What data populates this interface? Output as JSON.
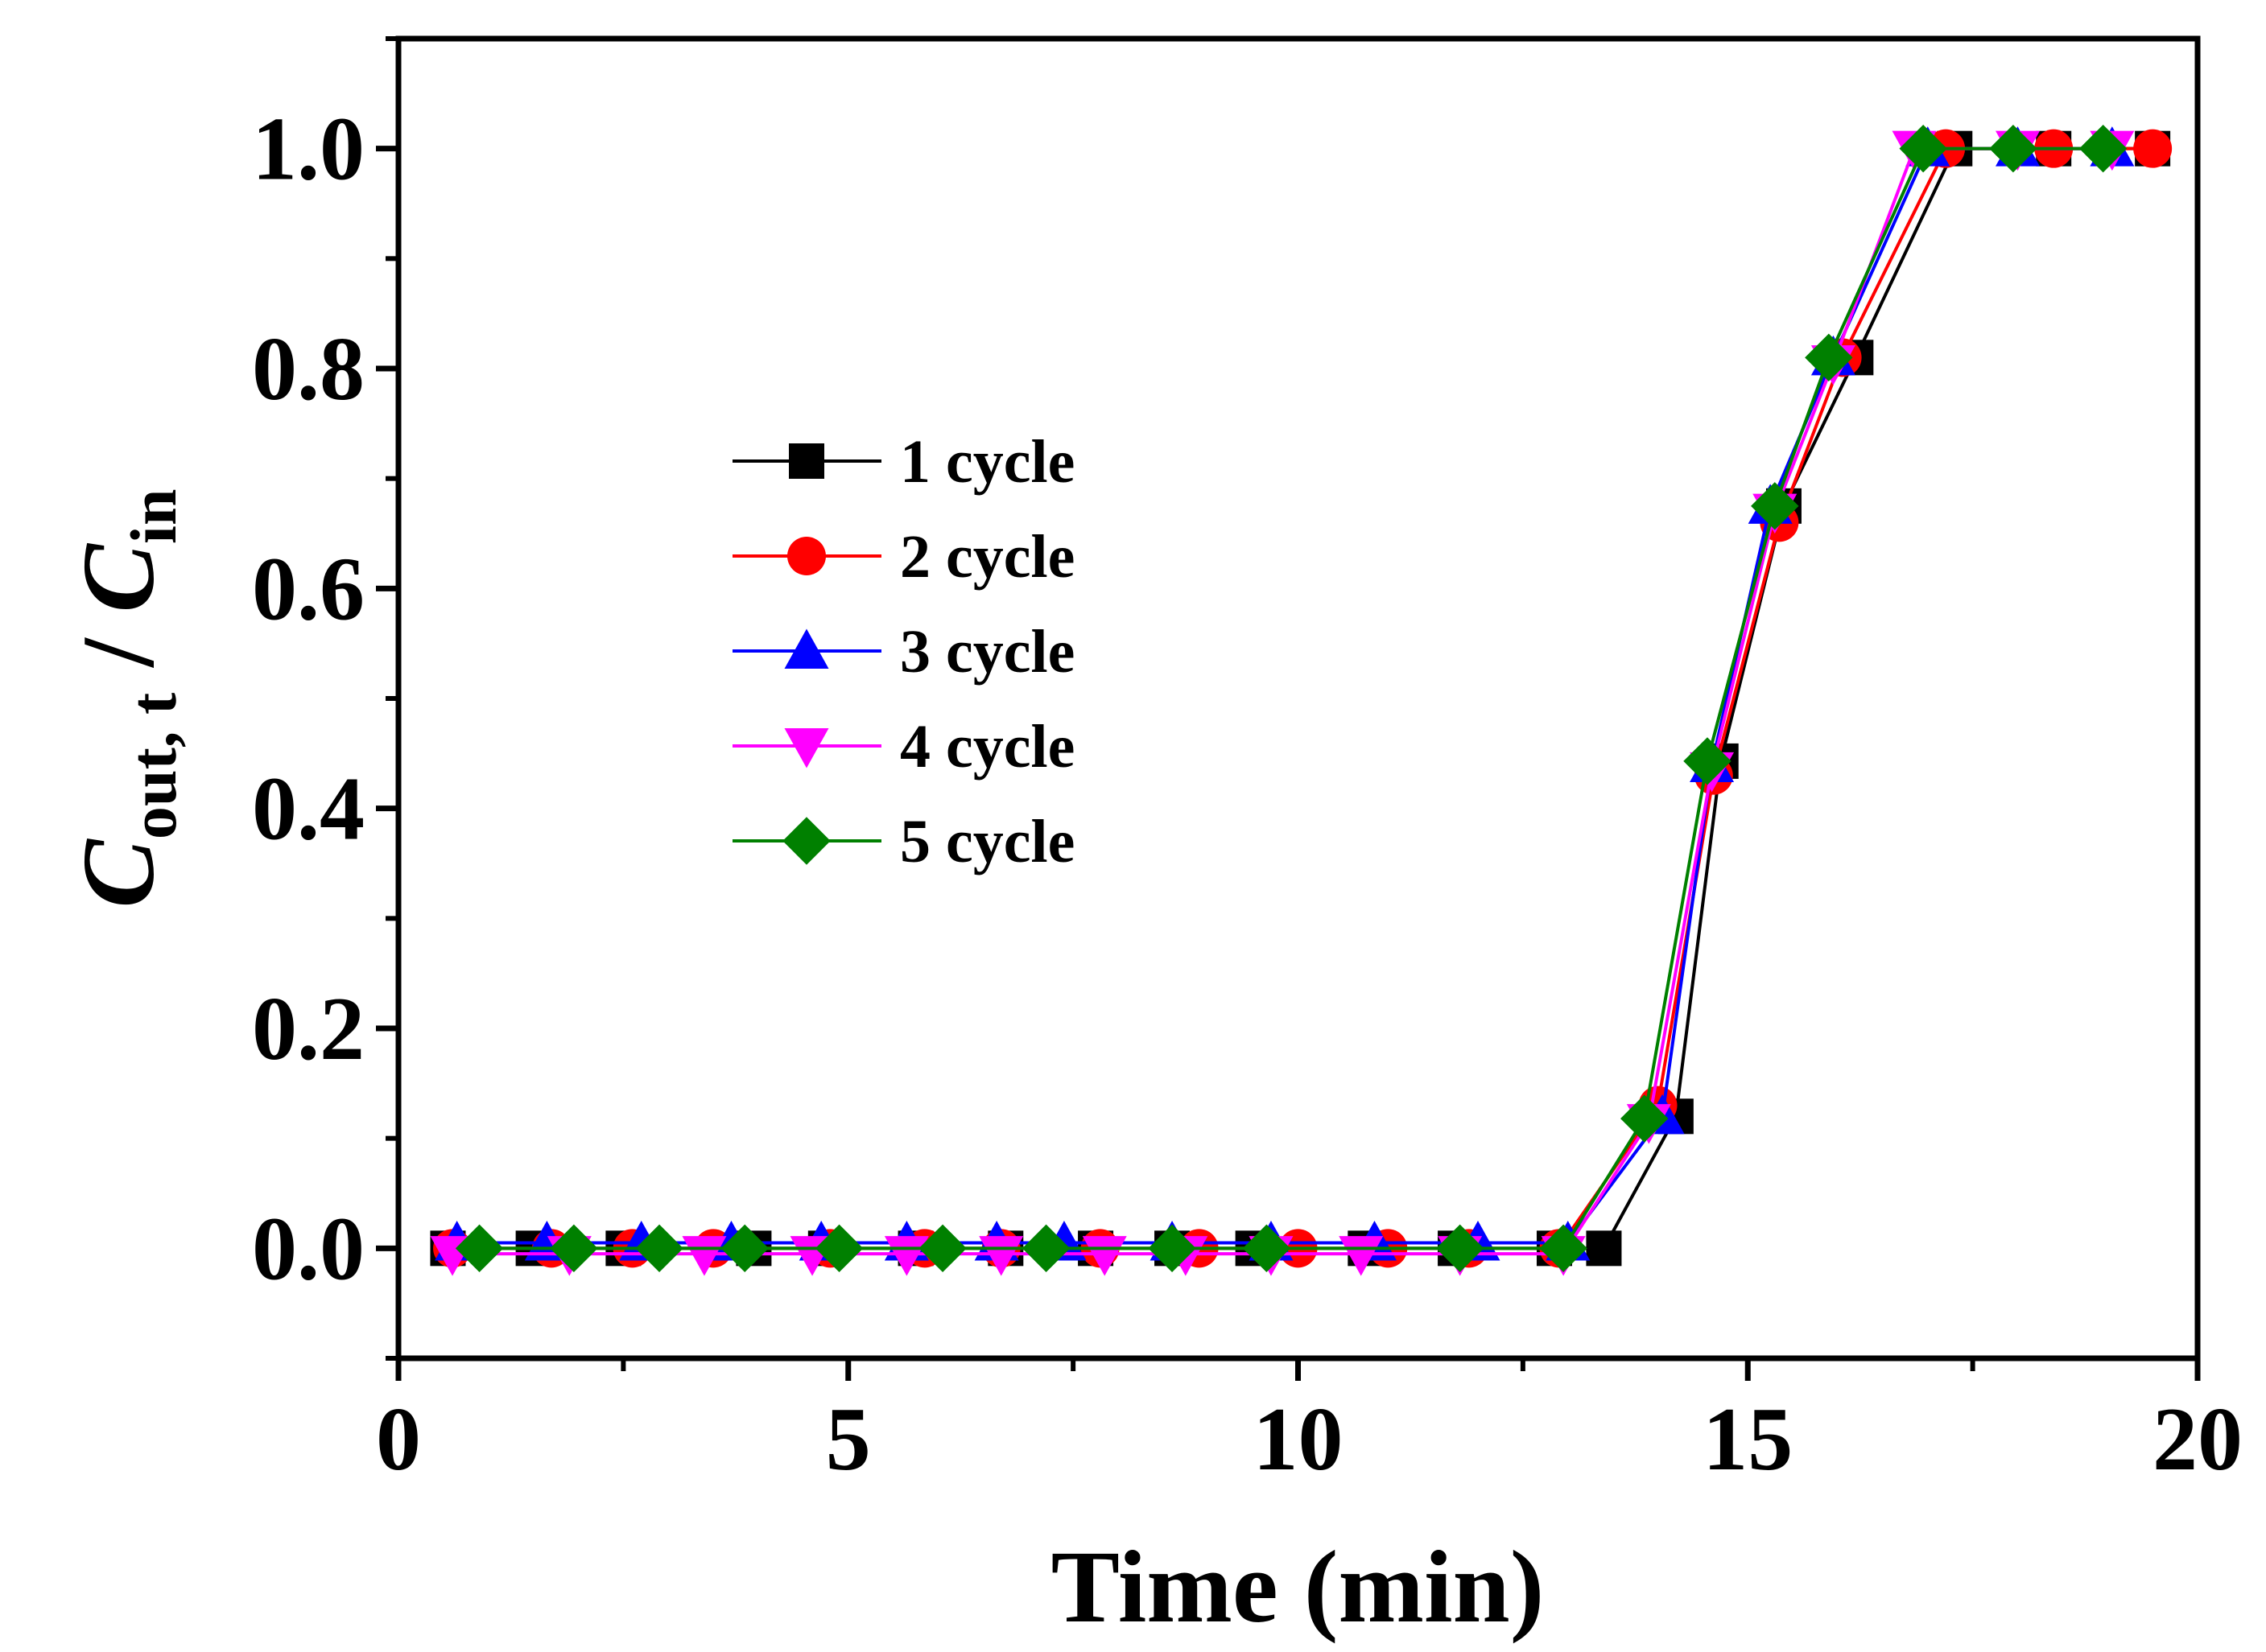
{
  "chart_data": {
    "type": "line",
    "title": "",
    "xlabel": "Time (min)",
    "ylabel": {
      "main1": "C",
      "sub1": "out, t",
      "sep": " / ",
      "main2": "C",
      "sub2": "in"
    },
    "xlim": [
      0,
      20
    ],
    "ylim": [
      -0.1,
      1.1
    ],
    "xticks": [
      0,
      5,
      10,
      15,
      20
    ],
    "xtick_labels": [
      "0",
      "5",
      "10",
      "15",
      "20"
    ],
    "xminor": [
      2.5,
      7.5,
      12.5,
      17.5
    ],
    "yticks": [
      0.0,
      0.2,
      0.4,
      0.6,
      0.8,
      1.0
    ],
    "ytick_labels": [
      "0.0",
      "0.2",
      "0.4",
      "0.6",
      "0.8",
      "1.0"
    ],
    "yminor": [
      -0.1,
      0.1,
      0.3,
      0.5,
      0.7,
      0.9,
      1.1
    ],
    "grid": false,
    "legend_position": "center-left",
    "series": [
      {
        "name": "1 cycle",
        "color": "#000000",
        "marker": "square",
        "points": [
          [
            0.55,
            0
          ],
          [
            1.5,
            0
          ],
          [
            2.5,
            0
          ],
          [
            3.95,
            0
          ],
          [
            4.75,
            0
          ],
          [
            5.75,
            0
          ],
          [
            6.75,
            0
          ],
          [
            7.75,
            0
          ],
          [
            8.6,
            0
          ],
          [
            9.5,
            0
          ],
          [
            10.75,
            0
          ],
          [
            11.75,
            0
          ],
          [
            12.85,
            0
          ],
          [
            13.4,
            0
          ],
          [
            14.2,
            0.12
          ],
          [
            14.7,
            0.443
          ],
          [
            15.4,
            0.675
          ],
          [
            16.2,
            0.81
          ],
          [
            17.3,
            1.0
          ],
          [
            18.4,
            1.0
          ],
          [
            19.5,
            1.0
          ]
        ]
      },
      {
        "name": "2 cycle",
        "color": "#ff0000",
        "marker": "circle",
        "points": [
          [
            0.6,
            0
          ],
          [
            1.7,
            0
          ],
          [
            2.6,
            0
          ],
          [
            3.5,
            0
          ],
          [
            4.8,
            0
          ],
          [
            5.85,
            0
          ],
          [
            6.7,
            0
          ],
          [
            7.8,
            0
          ],
          [
            8.9,
            0
          ],
          [
            10.0,
            0
          ],
          [
            11.0,
            0
          ],
          [
            11.9,
            0
          ],
          [
            12.9,
            0
          ],
          [
            14.0,
            0.13
          ],
          [
            14.62,
            0.43
          ],
          [
            15.35,
            0.66
          ],
          [
            16.05,
            0.81
          ],
          [
            17.2,
            1.0
          ],
          [
            18.4,
            1.0
          ],
          [
            19.5,
            1.0
          ]
        ]
      },
      {
        "name": "3 cycle",
        "color": "#0000ff",
        "marker": "triangle-up",
        "points": [
          [
            0.65,
            0.005
          ],
          [
            1.65,
            0.005
          ],
          [
            2.7,
            0.005
          ],
          [
            3.7,
            0.005
          ],
          [
            4.7,
            0.005
          ],
          [
            5.65,
            0.005
          ],
          [
            6.65,
            0.005
          ],
          [
            7.4,
            0.005
          ],
          [
            8.6,
            0.005
          ],
          [
            9.7,
            0.005
          ],
          [
            10.85,
            0.005
          ],
          [
            12.0,
            0.005
          ],
          [
            13.0,
            0.005
          ],
          [
            14.05,
            0.12
          ],
          [
            14.6,
            0.44
          ],
          [
            15.25,
            0.675
          ],
          [
            15.95,
            0.81
          ],
          [
            17.0,
            1.0
          ],
          [
            18.0,
            1.0
          ],
          [
            19.05,
            1.0
          ]
        ]
      },
      {
        "name": "4 cycle",
        "color": "#ff00ff",
        "marker": "triangle-down",
        "points": [
          [
            0.6,
            -0.005
          ],
          [
            1.9,
            -0.005
          ],
          [
            3.4,
            -0.005
          ],
          [
            4.6,
            -0.005
          ],
          [
            5.65,
            -0.005
          ],
          [
            6.7,
            -0.005
          ],
          [
            7.85,
            -0.005
          ],
          [
            8.75,
            -0.005
          ],
          [
            9.7,
            -0.005
          ],
          [
            10.7,
            -0.005
          ],
          [
            11.8,
            -0.005
          ],
          [
            12.95,
            -0.005
          ],
          [
            13.9,
            0.115
          ],
          [
            14.6,
            0.435
          ],
          [
            15.3,
            0.67
          ],
          [
            15.95,
            0.805
          ],
          [
            16.85,
            1.0
          ],
          [
            18.0,
            1.0
          ],
          [
            19.05,
            1.0
          ]
        ]
      },
      {
        "name": "5 cycle",
        "color": "#008000",
        "marker": "diamond",
        "points": [
          [
            0.9,
            0
          ],
          [
            1.95,
            0
          ],
          [
            2.9,
            0
          ],
          [
            3.85,
            0
          ],
          [
            4.9,
            0
          ],
          [
            6.05,
            0
          ],
          [
            7.2,
            0
          ],
          [
            8.6,
            0
          ],
          [
            9.65,
            0
          ],
          [
            11.8,
            0
          ],
          [
            12.95,
            0
          ],
          [
            13.85,
            0.118
          ],
          [
            14.55,
            0.443
          ],
          [
            15.3,
            0.675
          ],
          [
            15.9,
            0.81
          ],
          [
            16.95,
            1.0
          ],
          [
            17.95,
            1.0
          ],
          [
            18.95,
            1.0
          ]
        ]
      }
    ]
  }
}
